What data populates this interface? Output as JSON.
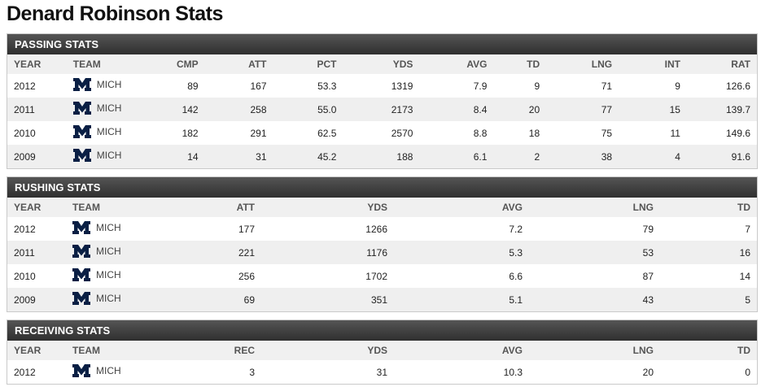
{
  "page_title": "Denard Robinson Stats",
  "colors": {
    "header_bar": "#3d3d3d",
    "logo_navy": "#0a1f44",
    "row_alt": "#efefef"
  },
  "passing": {
    "title": "PASSING STATS",
    "columns": [
      "YEAR",
      "TEAM",
      "CMP",
      "ATT",
      "PCT",
      "YDS",
      "AVG",
      "TD",
      "LNG",
      "INT",
      "RAT"
    ],
    "rows": [
      {
        "year": "2012",
        "team": "MICH",
        "cmp": "89",
        "att": "167",
        "pct": "53.3",
        "yds": "1319",
        "avg": "7.9",
        "td": "9",
        "lng": "71",
        "int": "9",
        "rat": "126.6"
      },
      {
        "year": "2011",
        "team": "MICH",
        "cmp": "142",
        "att": "258",
        "pct": "55.0",
        "yds": "2173",
        "avg": "8.4",
        "td": "20",
        "lng": "77",
        "int": "15",
        "rat": "139.7"
      },
      {
        "year": "2010",
        "team": "MICH",
        "cmp": "182",
        "att": "291",
        "pct": "62.5",
        "yds": "2570",
        "avg": "8.8",
        "td": "18",
        "lng": "75",
        "int": "11",
        "rat": "149.6"
      },
      {
        "year": "2009",
        "team": "MICH",
        "cmp": "14",
        "att": "31",
        "pct": "45.2",
        "yds": "188",
        "avg": "6.1",
        "td": "2",
        "lng": "38",
        "int": "4",
        "rat": "91.6"
      }
    ]
  },
  "rushing": {
    "title": "RUSHING STATS",
    "columns": [
      "YEAR",
      "TEAM",
      "ATT",
      "YDS",
      "AVG",
      "LNG",
      "TD"
    ],
    "rows": [
      {
        "year": "2012",
        "team": "MICH",
        "att": "177",
        "yds": "1266",
        "avg": "7.2",
        "lng": "79",
        "td": "7"
      },
      {
        "year": "2011",
        "team": "MICH",
        "att": "221",
        "yds": "1176",
        "avg": "5.3",
        "lng": "53",
        "td": "16"
      },
      {
        "year": "2010",
        "team": "MICH",
        "att": "256",
        "yds": "1702",
        "avg": "6.6",
        "lng": "87",
        "td": "14"
      },
      {
        "year": "2009",
        "team": "MICH",
        "att": "69",
        "yds": "351",
        "avg": "5.1",
        "lng": "43",
        "td": "5"
      }
    ]
  },
  "receiving": {
    "title": "RECEIVING STATS",
    "columns": [
      "YEAR",
      "TEAM",
      "REC",
      "YDS",
      "AVG",
      "LNG",
      "TD"
    ],
    "rows": [
      {
        "year": "2012",
        "team": "MICH",
        "rec": "3",
        "yds": "31",
        "avg": "10.3",
        "lng": "20",
        "td": "0"
      }
    ]
  }
}
